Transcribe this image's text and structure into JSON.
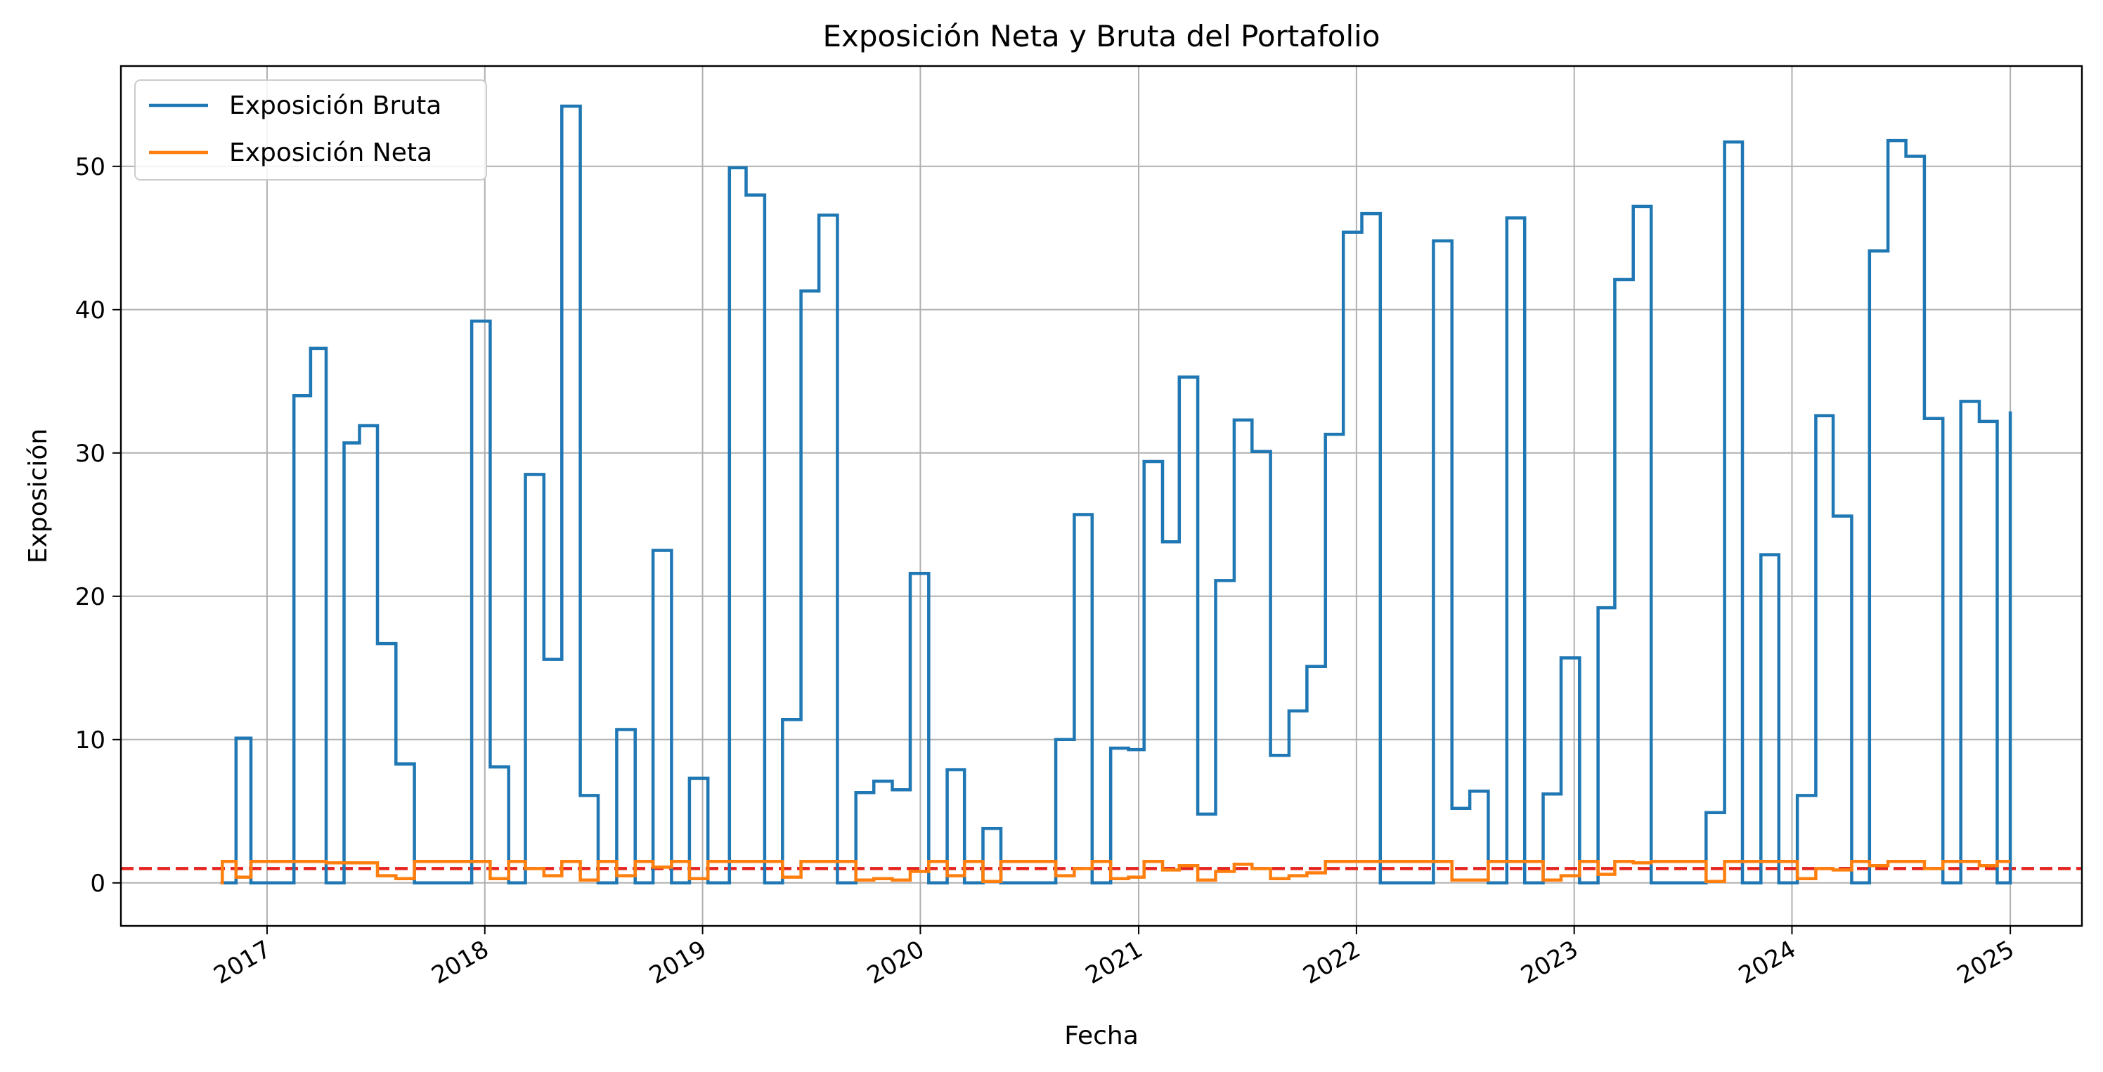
{
  "chart_data": {
    "type": "line",
    "title": "Exposición Neta y Bruta del Portafolio",
    "xlabel": "Fecha",
    "ylabel": "Exposición",
    "xlim": [
      "2016-05-01",
      "2025-05-01"
    ],
    "ylim": [
      -3,
      57
    ],
    "x_ticks": [
      "2017",
      "2018",
      "2019",
      "2020",
      "2021",
      "2022",
      "2023",
      "2024",
      "2025"
    ],
    "y_ticks": [
      0,
      10,
      20,
      30,
      40,
      50
    ],
    "grid": true,
    "legend_position": "top-left",
    "step": "post",
    "reference_line": {
      "y": 1.0,
      "color": "#e4231f",
      "style": "dashed"
    },
    "series": [
      {
        "name": "Exposición Bruta",
        "color": "#1f77b4",
        "points": [
          [
            "2016-10-15",
            0
          ],
          [
            "2016-11-10",
            10.1
          ],
          [
            "2016-12-05",
            0
          ],
          [
            "2017-02-15",
            34.0
          ],
          [
            "2017-03-15",
            37.3
          ],
          [
            "2017-04-10",
            0
          ],
          [
            "2017-05-10",
            30.7
          ],
          [
            "2017-06-05",
            31.9
          ],
          [
            "2017-07-05",
            16.7
          ],
          [
            "2017-08-05",
            8.3
          ],
          [
            "2017-09-05",
            0
          ],
          [
            "2017-12-10",
            39.2
          ],
          [
            "2018-01-10",
            8.1
          ],
          [
            "2018-02-10",
            0
          ],
          [
            "2018-03-10",
            28.5
          ],
          [
            "2018-04-10",
            15.6
          ],
          [
            "2018-05-10",
            54.2
          ],
          [
            "2018-06-10",
            6.1
          ],
          [
            "2018-07-10",
            0
          ],
          [
            "2018-08-10",
            10.7
          ],
          [
            "2018-09-10",
            0
          ],
          [
            "2018-10-10",
            23.2
          ],
          [
            "2018-11-10",
            0
          ],
          [
            "2018-12-10",
            7.3
          ],
          [
            "2019-01-10",
            0
          ],
          [
            "2019-02-15",
            49.9
          ],
          [
            "2019-03-15",
            48.0
          ],
          [
            "2019-04-15",
            0
          ],
          [
            "2019-05-15",
            11.4
          ],
          [
            "2019-06-15",
            41.3
          ],
          [
            "2019-07-15",
            46.6
          ],
          [
            "2019-08-15",
            0
          ],
          [
            "2019-09-15",
            6.3
          ],
          [
            "2019-10-15",
            7.1
          ],
          [
            "2019-11-15",
            6.5
          ],
          [
            "2019-12-15",
            21.6
          ],
          [
            "2020-01-15",
            0
          ],
          [
            "2020-02-15",
            7.9
          ],
          [
            "2020-03-15",
            0
          ],
          [
            "2020-04-15",
            3.8
          ],
          [
            "2020-05-15",
            0
          ],
          [
            "2020-08-15",
            10.0
          ],
          [
            "2020-09-15",
            25.7
          ],
          [
            "2020-10-15",
            0
          ],
          [
            "2020-11-15",
            9.4
          ],
          [
            "2020-12-15",
            9.3
          ],
          [
            "2021-01-10",
            29.4
          ],
          [
            "2021-02-10",
            23.8
          ],
          [
            "2021-03-10",
            35.3
          ],
          [
            "2021-04-10",
            4.8
          ],
          [
            "2021-05-10",
            21.1
          ],
          [
            "2021-06-10",
            32.3
          ],
          [
            "2021-07-10",
            30.1
          ],
          [
            "2021-08-10",
            8.9
          ],
          [
            "2021-09-10",
            12.0
          ],
          [
            "2021-10-10",
            15.1
          ],
          [
            "2021-11-10",
            31.3
          ],
          [
            "2021-12-10",
            45.4
          ],
          [
            "2022-01-10",
            46.7
          ],
          [
            "2022-02-10",
            0
          ],
          [
            "2022-05-10",
            44.8
          ],
          [
            "2022-06-10",
            5.2
          ],
          [
            "2022-07-10",
            6.4
          ],
          [
            "2022-08-10",
            0
          ],
          [
            "2022-09-10",
            46.4
          ],
          [
            "2022-10-10",
            0
          ],
          [
            "2022-11-10",
            6.2
          ],
          [
            "2022-12-10",
            15.7
          ],
          [
            "2023-01-10",
            0
          ],
          [
            "2023-02-10",
            19.2
          ],
          [
            "2023-03-10",
            42.1
          ],
          [
            "2023-04-10",
            47.2
          ],
          [
            "2023-05-10",
            0
          ],
          [
            "2023-08-10",
            4.9
          ],
          [
            "2023-09-10",
            51.7
          ],
          [
            "2023-10-10",
            0
          ],
          [
            "2023-11-10",
            22.9
          ],
          [
            "2023-12-10",
            0
          ],
          [
            "2024-01-10",
            6.1
          ],
          [
            "2024-02-10",
            32.6
          ],
          [
            "2024-03-10",
            25.6
          ],
          [
            "2024-04-10",
            0
          ],
          [
            "2024-05-10",
            44.1
          ],
          [
            "2024-06-10",
            51.8
          ],
          [
            "2024-07-10",
            50.7
          ],
          [
            "2024-08-10",
            32.4
          ],
          [
            "2024-09-10",
            0
          ],
          [
            "2024-10-10",
            33.6
          ],
          [
            "2024-11-10",
            32.2
          ],
          [
            "2024-12-10",
            0
          ],
          [
            "2025-01-01",
            32.9
          ]
        ]
      },
      {
        "name": "Exposición Neta",
        "color": "#ff7f0e",
        "points": [
          [
            "2016-10-15",
            0
          ],
          [
            "2016-10-18",
            1.5
          ],
          [
            "2016-11-10",
            0.4
          ],
          [
            "2016-12-05",
            1.5
          ],
          [
            "2017-04-10",
            1.4
          ],
          [
            "2017-07-05",
            0.5
          ],
          [
            "2017-08-05",
            0.3
          ],
          [
            "2017-09-05",
            1.5
          ],
          [
            "2018-01-10",
            0.3
          ],
          [
            "2018-02-10",
            1.5
          ],
          [
            "2018-03-10",
            1.0
          ],
          [
            "2018-04-10",
            0.5
          ],
          [
            "2018-05-10",
            1.5
          ],
          [
            "2018-06-10",
            0.2
          ],
          [
            "2018-07-10",
            1.5
          ],
          [
            "2018-08-10",
            0.5
          ],
          [
            "2018-09-10",
            1.5
          ],
          [
            "2018-10-10",
            1.1
          ],
          [
            "2018-11-10",
            1.5
          ],
          [
            "2018-12-10",
            0.3
          ],
          [
            "2019-01-10",
            1.5
          ],
          [
            "2019-05-15",
            0.4
          ],
          [
            "2019-06-15",
            1.5
          ],
          [
            "2019-09-15",
            0.2
          ],
          [
            "2019-10-15",
            0.3
          ],
          [
            "2019-11-15",
            0.2
          ],
          [
            "2019-12-15",
            0.8
          ],
          [
            "2020-01-15",
            1.5
          ],
          [
            "2020-02-15",
            0.5
          ],
          [
            "2020-03-15",
            1.5
          ],
          [
            "2020-04-15",
            0.1
          ],
          [
            "2020-05-15",
            1.5
          ],
          [
            "2020-08-15",
            0.5
          ],
          [
            "2020-09-15",
            1.0
          ],
          [
            "2020-10-15",
            1.5
          ],
          [
            "2020-11-15",
            0.3
          ],
          [
            "2020-12-15",
            0.4
          ],
          [
            "2021-01-10",
            1.5
          ],
          [
            "2021-02-10",
            0.9
          ],
          [
            "2021-03-10",
            1.2
          ],
          [
            "2021-04-10",
            0.2
          ],
          [
            "2021-05-10",
            0.8
          ],
          [
            "2021-06-10",
            1.3
          ],
          [
            "2021-07-10",
            1.0
          ],
          [
            "2021-08-10",
            0.3
          ],
          [
            "2021-09-10",
            0.5
          ],
          [
            "2021-10-10",
            0.7
          ],
          [
            "2021-11-10",
            1.5
          ],
          [
            "2022-06-10",
            0.2
          ],
          [
            "2022-08-10",
            1.5
          ],
          [
            "2022-11-10",
            0.2
          ],
          [
            "2022-12-10",
            0.5
          ],
          [
            "2023-01-10",
            1.5
          ],
          [
            "2023-02-10",
            0.6
          ],
          [
            "2023-03-10",
            1.5
          ],
          [
            "2023-04-10",
            1.4
          ],
          [
            "2023-05-10",
            1.5
          ],
          [
            "2023-08-10",
            0.1
          ],
          [
            "2023-09-10",
            1.5
          ],
          [
            "2024-01-10",
            0.3
          ],
          [
            "2024-02-10",
            1.0
          ],
          [
            "2024-03-10",
            0.9
          ],
          [
            "2024-04-10",
            1.5
          ],
          [
            "2024-05-10",
            1.2
          ],
          [
            "2024-06-10",
            1.5
          ],
          [
            "2024-08-10",
            1.0
          ],
          [
            "2024-09-10",
            1.5
          ],
          [
            "2024-11-10",
            1.2
          ],
          [
            "2024-12-10",
            1.5
          ],
          [
            "2025-01-01",
            1.5
          ]
        ]
      }
    ]
  }
}
